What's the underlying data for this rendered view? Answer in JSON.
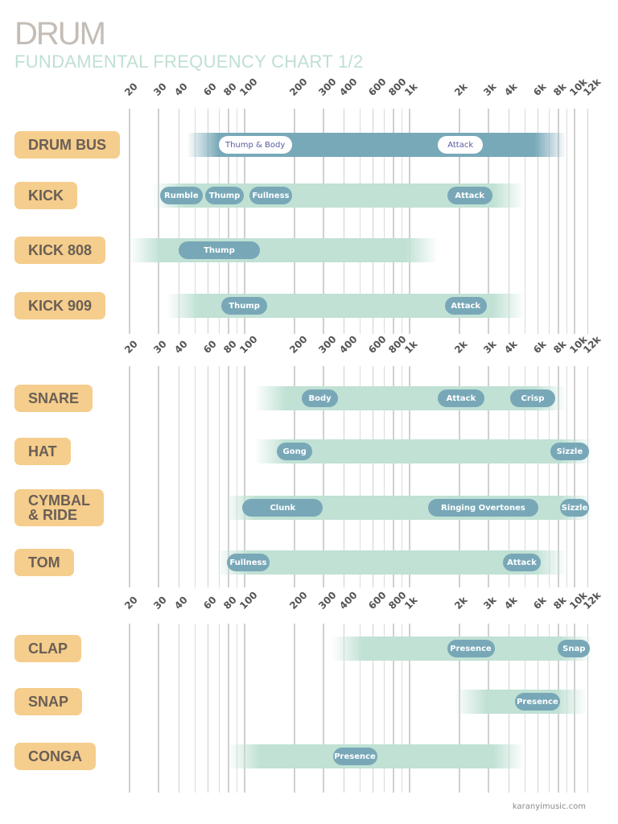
{
  "title": "DRUM",
  "subtitle": "FUNDAMENTAL FREQUENCY CHART 1/2",
  "footer": "karanyimusic.com",
  "colors": {
    "label_bg": "#f5cd8c",
    "label_text": "#6a5f56",
    "bar_light": "#c0e1d4",
    "bar_dark": "#78a9b8",
    "pill": "#78a8b8",
    "pill_inverse_text": "#5a5aa0"
  },
  "chart_data": {
    "type": "range-bar",
    "x_scale": "log",
    "xlim": [
      20,
      12000
    ],
    "grid": true,
    "tick_labels": [
      "20",
      "30",
      "40",
      "60",
      "80",
      "100",
      "200",
      "300",
      "400",
      "600",
      "800",
      "1k",
      "2k",
      "3k",
      "4k",
      "6k",
      "8k",
      "10k",
      "12k"
    ],
    "tick_values": [
      20,
      30,
      40,
      60,
      80,
      100,
      200,
      300,
      400,
      600,
      800,
      1000,
      2000,
      3000,
      4000,
      6000,
      8000,
      10000,
      12000
    ],
    "gridlines": [
      20,
      30,
      40,
      50,
      60,
      70,
      80,
      90,
      100,
      200,
      300,
      400,
      500,
      600,
      700,
      800,
      900,
      1000,
      2000,
      3000,
      4000,
      5000,
      6000,
      7000,
      8000,
      9000,
      10000,
      12000
    ],
    "groups": [
      {
        "instruments": [
          {
            "name": "DRUM BUS",
            "range": [
              45,
              9000
            ],
            "style": "dark",
            "bands": [
              {
                "label": "Thump & Body",
                "range": [
                  70,
                  195
                ]
              },
              {
                "label": "Attack",
                "range": [
                  1500,
                  2800
                ]
              }
            ]
          },
          {
            "name": "KICK",
            "range": [
              28,
              5000
            ],
            "bands": [
              {
                "label": "Rumble",
                "range": [
                  31,
                  56
                ]
              },
              {
                "label": "Thump",
                "range": [
                  58,
                  100
                ]
              },
              {
                "label": "Fullness",
                "range": [
                  108,
                  195
                ]
              },
              {
                "label": "Attack",
                "range": [
                  1700,
                  3200
                ]
              }
            ]
          },
          {
            "name": "KICK 808",
            "range": [
              20,
              1500
            ],
            "bands": [
              {
                "label": "Thump",
                "range": [
                  40,
                  125
                ]
              }
            ]
          },
          {
            "name": "KICK 909",
            "range": [
              34,
              5000
            ],
            "bands": [
              {
                "label": "Thump",
                "range": [
                  73,
                  138
                ]
              },
              {
                "label": "Attack",
                "range": [
                  1650,
                  2950
                ]
              }
            ]
          }
        ]
      },
      {
        "instruments": [
          {
            "name": "SNARE",
            "range": [
              115,
              9000
            ],
            "bands": [
              {
                "label": "Body",
                "range": [
                  225,
                  370
                ]
              },
              {
                "label": "Attack",
                "range": [
                  1500,
                  2850
                ]
              },
              {
                "label": "Crisp",
                "range": [
                  4100,
                  7700
                ]
              }
            ]
          },
          {
            "name": "HAT",
            "range": [
              115,
              13000
            ],
            "bands": [
              {
                "label": "Gong",
                "range": [
                  158,
                  260
                ]
              },
              {
                "label": "Sizzle",
                "range": [
                  7200,
                  12300
                ]
              }
            ]
          },
          {
            "name": "CYMBAL & RIDE",
            "range": [
              75,
              13000
            ],
            "bands": [
              {
                "label": "Clunk",
                "range": [
                  98,
                  300
                ]
              },
              {
                "label": "Ringing Overtones",
                "range": [
                  1300,
                  6100
                ]
              },
              {
                "label": "Sizzle",
                "range": [
                  8200,
                  12400
                ]
              }
            ]
          },
          {
            "name": "TOM",
            "range": [
              68,
              9000
            ],
            "bands": [
              {
                "label": "Fullness",
                "range": [
                  79,
                  142
                ]
              },
              {
                "label": "Attack",
                "range": [
                  3700,
                  6300
                ]
              }
            ]
          }
        ]
      },
      {
        "instruments": [
          {
            "name": "CLAP",
            "range": [
              340,
              13000
            ],
            "bands": [
              {
                "label": "Presence",
                "range": [
                  1700,
                  3300
                ]
              },
              {
                "label": "Snap",
                "range": [
                  8000,
                  12500
                ]
              }
            ]
          },
          {
            "name": "SNAP",
            "range": [
              1900,
              12000
            ],
            "bands": [
              {
                "label": "Presence",
                "range": [
                  4400,
                  8200
                ]
              }
            ]
          },
          {
            "name": "CONGA",
            "range": [
              80,
              5000
            ],
            "bands": [
              {
                "label": "Presence",
                "range": [
                  345,
                  640
                ]
              }
            ]
          }
        ]
      }
    ]
  }
}
